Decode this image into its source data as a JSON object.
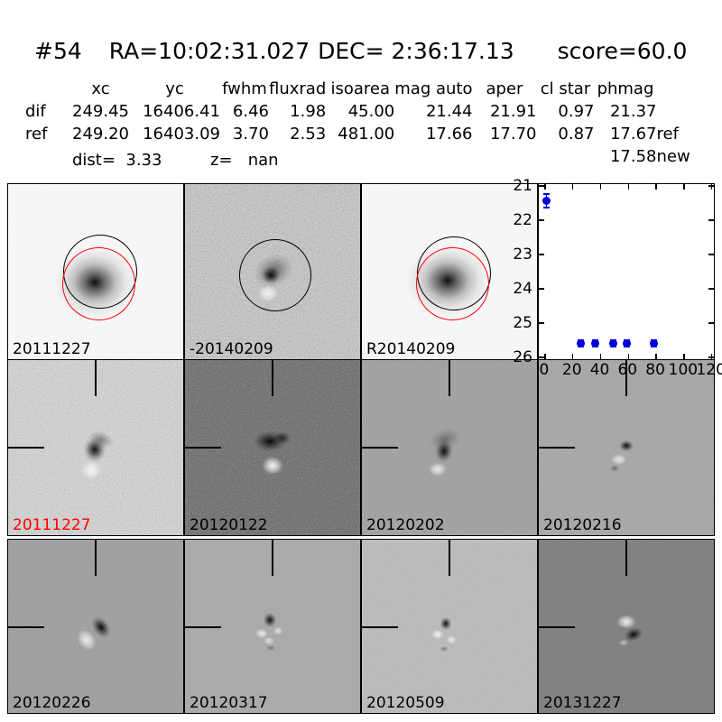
{
  "header": {
    "id": "#54",
    "ra": "RA=10:02:31.027",
    "dec": "DEC= 2:36:17.13",
    "score": "score=60.0"
  },
  "photometry": {
    "columns": [
      "xc",
      "yc",
      "fwhm",
      "fluxrad",
      "isoarea",
      "mag auto",
      "aper",
      "cl star",
      "phmag"
    ],
    "rows": [
      {
        "label": "dif",
        "xc": "249.45",
        "yc": "16406.41",
        "fwhm": "6.46",
        "fluxrad": "1.98",
        "isoarea": "45.00",
        "mag_auto": "21.44",
        "aper": "21.91",
        "cl_star": "0.97",
        "phmag": "21.37",
        "suffix": ""
      },
      {
        "label": "ref",
        "xc": "249.20",
        "yc": "16403.09",
        "fwhm": "3.70",
        "fluxrad": "2.53",
        "isoarea": "481.00",
        "mag_auto": "17.66",
        "aper": "17.70",
        "cl_star": "0.87",
        "phmag": "17.67",
        "suffix": "ref"
      }
    ],
    "extra_phmag": {
      "phmag": "17.58",
      "suffix": "new"
    },
    "dist_label": "dist=  3.33",
    "z_label": "z=   nan"
  },
  "cutouts": {
    "row1": [
      {
        "label": "20111227",
        "label_color": "#000000"
      },
      {
        "label": "-20140209",
        "label_color": "#000000"
      },
      {
        "label": "R20140209",
        "label_color": "#000000"
      }
    ],
    "row2": [
      {
        "label": "20111227",
        "label_color": "#ff0000"
      },
      {
        "label": "20120122",
        "label_color": "#000000"
      },
      {
        "label": "20120202",
        "label_color": "#000000"
      },
      {
        "label": "20120216",
        "label_color": "#000000"
      }
    ],
    "row3": [
      {
        "label": "20120226",
        "label_color": "#000000"
      },
      {
        "label": "20120317",
        "label_color": "#000000"
      },
      {
        "label": "20120509",
        "label_color": "#000000"
      },
      {
        "label": "20131227",
        "label_color": "#000000"
      }
    ]
  },
  "colors": {
    "aperture_circle": "#000000",
    "ref_aperture_circle": "#ff0000",
    "marker_blue": "#0000dd",
    "flagged_label_red": "#ff0000"
  },
  "chart_data": {
    "type": "scatter",
    "title": "",
    "xlabel": "",
    "ylabel": "",
    "xlim": [
      -4.5,
      121.5
    ],
    "ylim_inverted": [
      26.05,
      20.95
    ],
    "xticks": [
      0,
      20,
      40,
      60,
      80,
      100,
      120
    ],
    "yticks": [
      21,
      22,
      23,
      24,
      25,
      26
    ],
    "grid": false,
    "legend": false,
    "marker_color": "#0000dd",
    "points": [
      {
        "x": 1,
        "y": 21.44,
        "yerr": 0.2
      },
      {
        "x": 26,
        "y": 25.6,
        "yerr": 0.1
      },
      {
        "x": 36,
        "y": 25.6,
        "yerr": 0.1
      },
      {
        "x": 49,
        "y": 25.6,
        "yerr": 0.1
      },
      {
        "x": 59,
        "y": 25.6,
        "yerr": 0.1
      },
      {
        "x": 78,
        "y": 25.6,
        "yerr": 0.1
      }
    ]
  }
}
